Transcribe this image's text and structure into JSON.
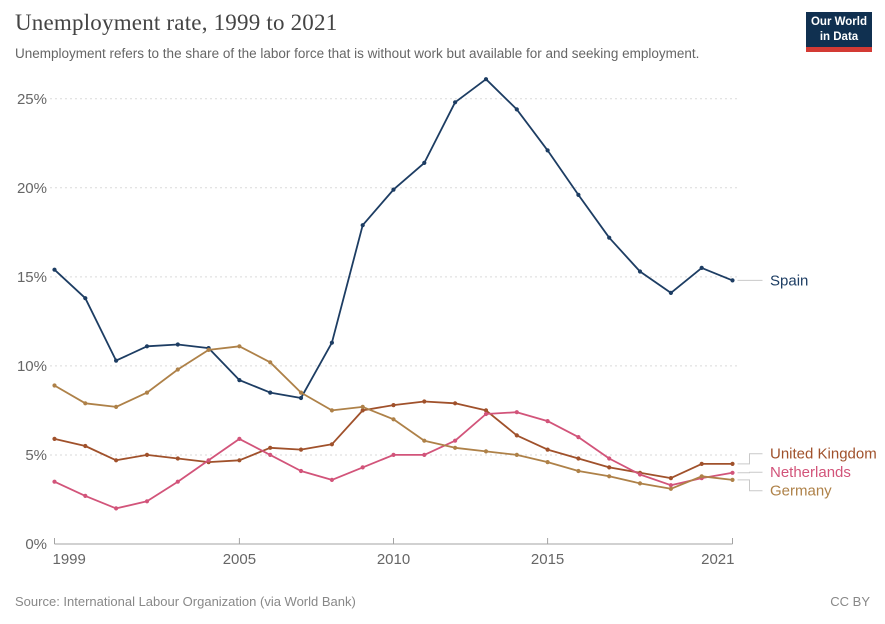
{
  "header": {
    "title": "Unemployment rate, 1999 to 2021",
    "subtitle": "Unemployment refers to the share of the labor force that is without work but available for and seeking employment."
  },
  "logo": {
    "line1": "Our World",
    "line2": "in Data",
    "bg_color": "#103050",
    "accent_color": "#d33a34"
  },
  "chart_data": {
    "type": "line",
    "title": "Unemployment rate, 1999 to 2021",
    "x": [
      1999,
      2000,
      2001,
      2002,
      2003,
      2004,
      2005,
      2006,
      2007,
      2008,
      2009,
      2010,
      2011,
      2012,
      2013,
      2014,
      2015,
      2016,
      2017,
      2018,
      2019,
      2020,
      2021
    ],
    "x_ticks": [
      1999,
      2005,
      2010,
      2015,
      2021
    ],
    "y_ticks": [
      0,
      5,
      10,
      15,
      20,
      25
    ],
    "y_tick_suffix": "%",
    "ylim": [
      0,
      26.5
    ],
    "grid": true,
    "legend_position": "end-of-line",
    "series": [
      {
        "name": "Spain",
        "color": "#1d3d63",
        "values": [
          15.4,
          13.8,
          10.3,
          11.1,
          11.2,
          11.0,
          9.2,
          8.5,
          8.2,
          11.3,
          17.9,
          19.9,
          21.4,
          24.8,
          26.1,
          24.4,
          22.1,
          19.6,
          17.2,
          15.3,
          14.1,
          15.5,
          14.8
        ]
      },
      {
        "name": "United Kingdom",
        "color": "#a0512b",
        "values": [
          5.9,
          5.5,
          4.7,
          5.0,
          4.8,
          4.6,
          4.7,
          5.4,
          5.3,
          5.6,
          7.5,
          7.8,
          8.0,
          7.9,
          7.5,
          6.1,
          5.3,
          4.8,
          4.3,
          4.0,
          3.7,
          4.5,
          4.5
        ]
      },
      {
        "name": "Netherlands",
        "color": "#d2547a",
        "values": [
          3.5,
          2.7,
          2.0,
          2.4,
          3.5,
          4.7,
          5.9,
          5.0,
          4.1,
          3.6,
          4.3,
          5.0,
          5.0,
          5.8,
          7.3,
          7.4,
          6.9,
          6.0,
          4.8,
          3.9,
          3.3,
          3.7,
          4.0
        ]
      },
      {
        "name": "Germany",
        "color": "#ae8148",
        "values": [
          8.9,
          7.9,
          7.7,
          8.5,
          9.8,
          10.9,
          11.1,
          10.2,
          8.5,
          7.5,
          7.7,
          7.0,
          5.8,
          5.4,
          5.2,
          5.0,
          4.6,
          4.1,
          3.8,
          3.4,
          3.1,
          3.8,
          3.6
        ]
      }
    ]
  },
  "footer": {
    "source": "Source: International Labour Organization (via World Bank)",
    "license": "CC BY"
  }
}
